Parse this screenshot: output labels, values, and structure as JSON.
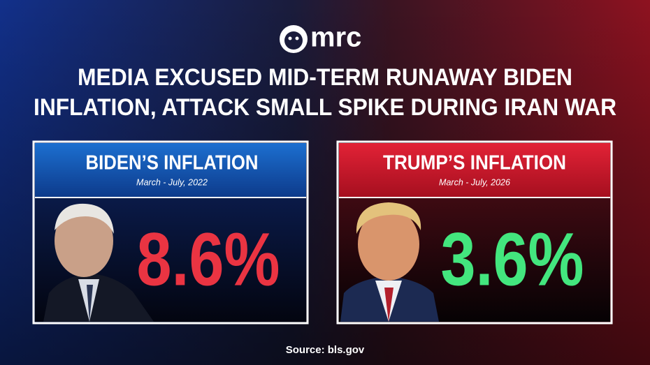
{
  "logo": {
    "text": "mrc"
  },
  "header": {
    "title_lines": [
      "MEDIA EXCUSED MID-TERM RUNAWAY BIDEN",
      "INFLATION, ATTACK SMALL SPIKE DURING IRAN WAR"
    ]
  },
  "panels": [
    {
      "title": "BIDEN’S INFLATION",
      "subtitle": "March - July, 2022",
      "value": "8.6%"
    },
    {
      "title": "TRUMP’S INFLATION",
      "subtitle": "March - July, 2026",
      "value": "3.6%"
    }
  ],
  "footer": {
    "source": "Source: bls.gov"
  }
}
